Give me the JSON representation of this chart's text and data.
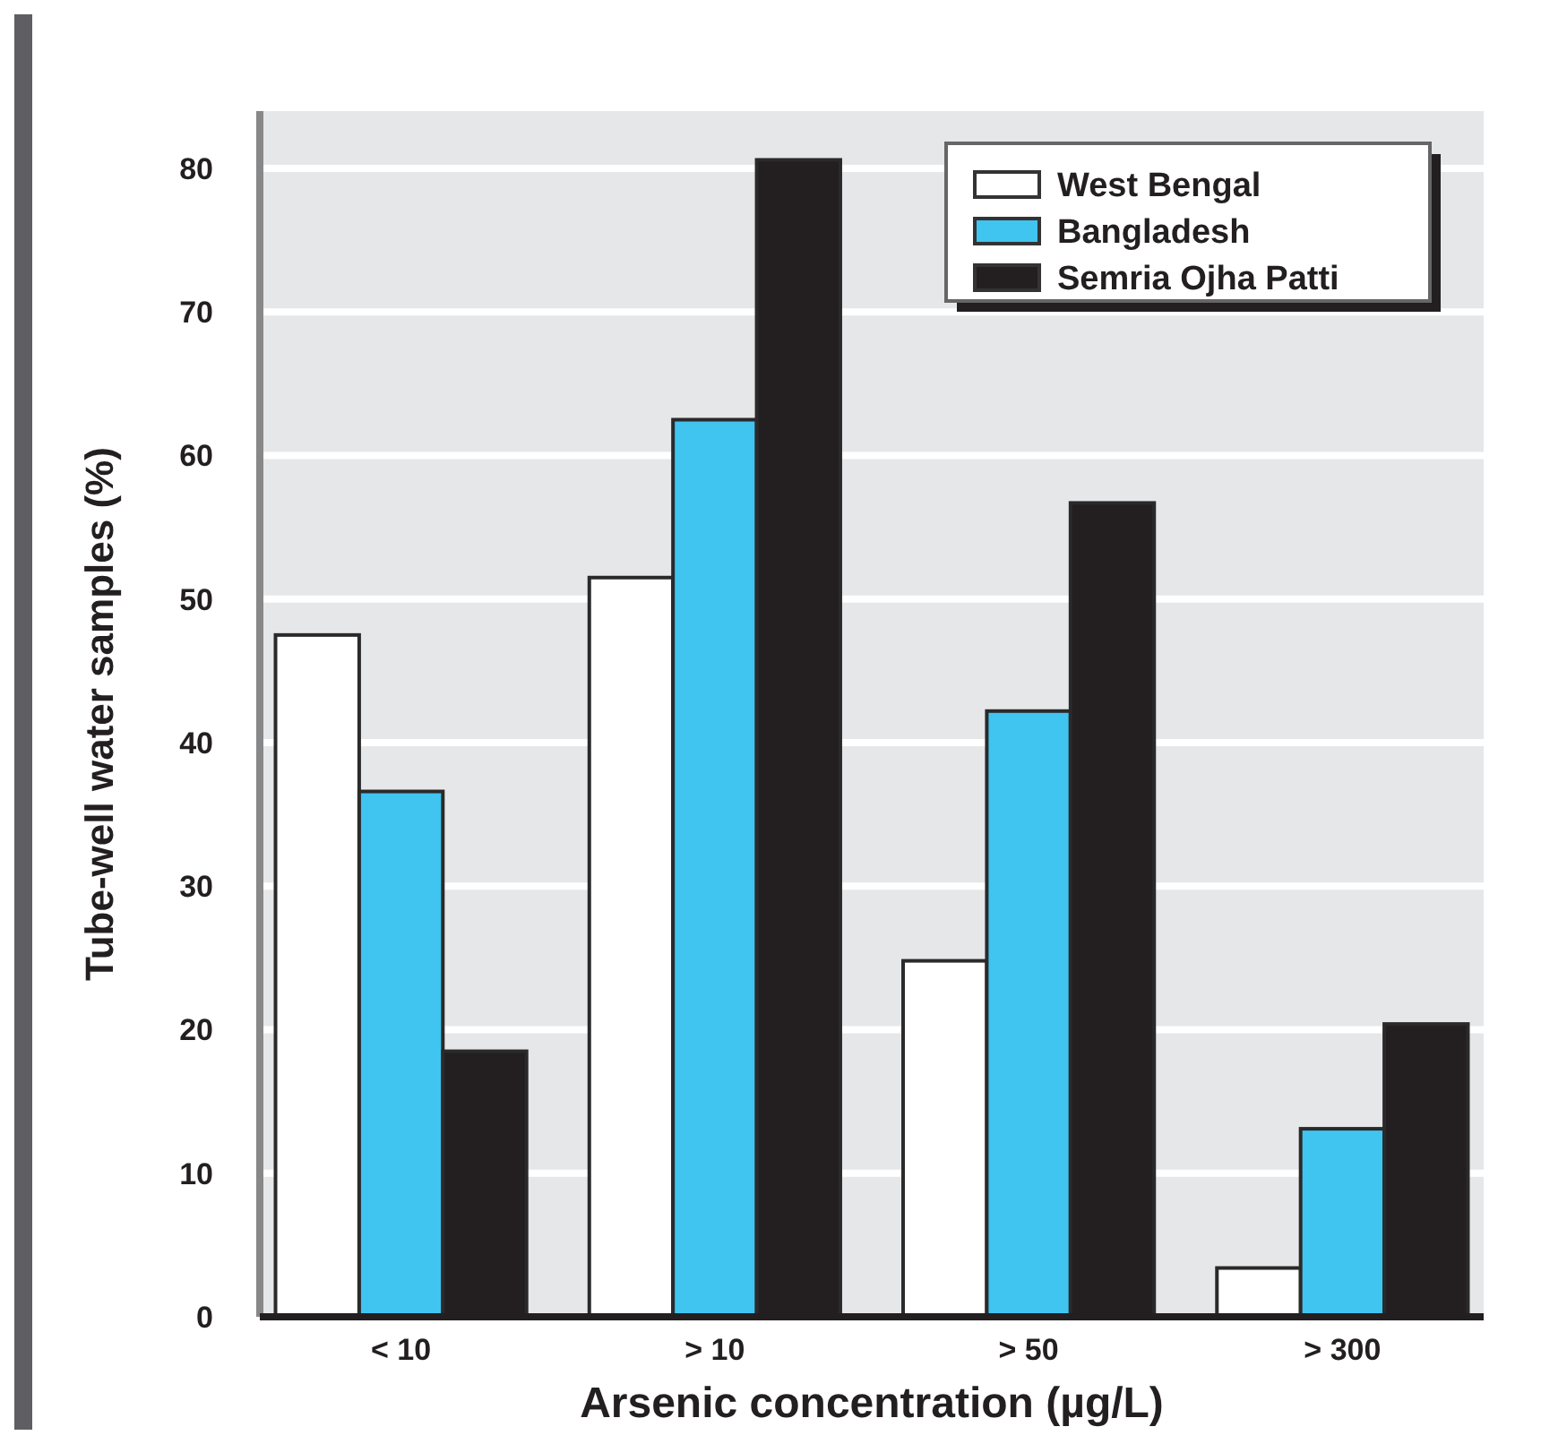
{
  "chart_data": {
    "type": "bar",
    "xlabel": "Arsenic concentration (µg/L)",
    "ylabel": "Tube-well water samples (%)",
    "categories": [
      "< 10",
      "> 10",
      "> 50",
      "> 300"
    ],
    "series": [
      {
        "name": "West Bengal",
        "color": "#ffffff",
        "values": [
          47.5,
          51.5,
          24.8,
          3.4
        ]
      },
      {
        "name": "Bangladesh",
        "color": "#40c4f0",
        "values": [
          36.6,
          62.5,
          42.2,
          13.1
        ]
      },
      {
        "name": "Semria Ojha Patti",
        "color": "#231f20",
        "values": [
          18.5,
          80.6,
          56.7,
          20.4
        ]
      }
    ],
    "ylim": [
      0,
      84
    ],
    "yticks": [
      0,
      10,
      20,
      30,
      40,
      50,
      60,
      70,
      80
    ],
    "grid": "y",
    "legend": "top right"
  }
}
